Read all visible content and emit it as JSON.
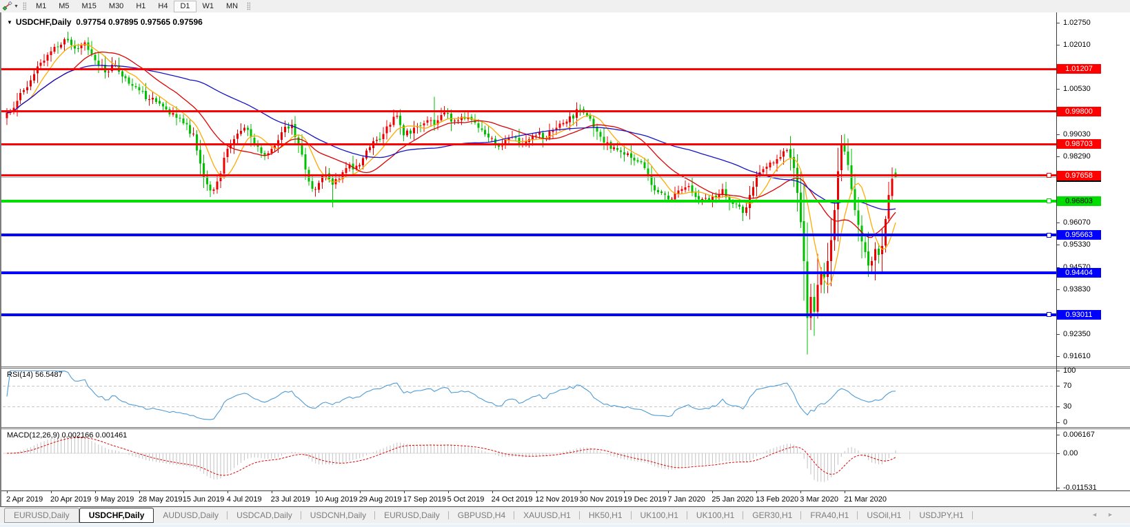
{
  "toolbar": {
    "indicator_icon": "trendline-indicator-icon",
    "timeframes": [
      "M1",
      "M5",
      "M15",
      "M30",
      "H1",
      "H4",
      "D1",
      "W1",
      "MN"
    ],
    "active_timeframe": "D1"
  },
  "chart": {
    "title": "USDCHF,Daily",
    "collapse_arrow": "▼",
    "ohlc": [
      "0.97754",
      "0.97895",
      "0.97565",
      "0.97596"
    ],
    "axis_range": {
      "price_top": 1.0301,
      "price_bottom": 0.91366
    },
    "axis_ticks": [
      {
        "label": "1.02750",
        "price": 1.0275
      },
      {
        "label": "1.02010",
        "price": 1.0201
      },
      {
        "label": "1.00530",
        "price": 1.0053
      },
      {
        "label": "0.99030",
        "price": 0.9903
      },
      {
        "label": "0.98290",
        "price": 0.9829
      },
      {
        "label": "0.96070",
        "price": 0.9607
      },
      {
        "label": "0.95330",
        "price": 0.9533
      },
      {
        "label": "0.94570",
        "price": 0.9457
      },
      {
        "label": "0.93830",
        "price": 0.9383
      },
      {
        "label": "0.92350",
        "price": 0.9235
      },
      {
        "label": "0.91610",
        "price": 0.9161
      }
    ],
    "levels": [
      {
        "label": "1.01207",
        "price": 1.01207,
        "color": "#ff0000",
        "text": "#ffffff",
        "marker": false
      },
      {
        "label": "0.99800",
        "price": 0.998,
        "color": "#ff0000",
        "text": "#ffffff",
        "marker": false
      },
      {
        "label": "0.98703",
        "price": 0.98703,
        "color": "#ff0000",
        "text": "#ffffff",
        "marker": false
      },
      {
        "label": "0.97658",
        "price": 0.97658,
        "color": "#ff0000",
        "text": "#ffffff",
        "marker": true
      },
      {
        "label": "0.96803",
        "price": 0.96803,
        "color": "#00dd00",
        "text": "#000000",
        "marker": true
      },
      {
        "label": "0.95663",
        "price": 0.95663,
        "color": "#0000ff",
        "text": "#ffffff",
        "marker": true
      },
      {
        "label": "0.94404",
        "price": 0.94404,
        "color": "#0000ff",
        "text": "#ffffff",
        "marker": false
      },
      {
        "label": "0.93011",
        "price": 0.93011,
        "color": "#0000ff",
        "text": "#ffffff",
        "marker": true
      }
    ],
    "current_price": {
      "label": "0.97596",
      "price": 0.97596
    },
    "date_labels": [
      {
        "label": "2 Apr 2019",
        "day": 0
      },
      {
        "label": "20 Apr 2019",
        "day": 13
      },
      {
        "label": "9 May 2019",
        "day": 26
      },
      {
        "label": "28 May 2019",
        "day": 39
      },
      {
        "label": "15 Jun 2019",
        "day": 52
      },
      {
        "label": "4 Jul 2019",
        "day": 65
      },
      {
        "label": "23 Jul 2019",
        "day": 78
      },
      {
        "label": "10 Aug 2019",
        "day": 91
      },
      {
        "label": "29 Aug 2019",
        "day": 104
      },
      {
        "label": "17 Sep 2019",
        "day": 117
      },
      {
        "label": "5 Oct 2019",
        "day": 130
      },
      {
        "label": "24 Oct 2019",
        "day": 143
      },
      {
        "label": "12 Nov 2019",
        "day": 156
      },
      {
        "label": "30 Nov 2019",
        "day": 169
      },
      {
        "label": "19 Dec 2019",
        "day": 182
      },
      {
        "label": "7 Jan 2020",
        "day": 195
      },
      {
        "label": "25 Jan 2020",
        "day": 208
      },
      {
        "label": "13 Feb 2020",
        "day": 221
      },
      {
        "label": "3 Mar 2020",
        "day": 234
      },
      {
        "label": "21 Mar 2020",
        "day": 247
      }
    ],
    "price_keypoints": [
      [
        0,
        0.9975
      ],
      [
        3,
        1.0015
      ],
      [
        6,
        1.006
      ],
      [
        9,
        1.013
      ],
      [
        13,
        1.018
      ],
      [
        17,
        1.022
      ],
      [
        20,
        1.019
      ],
      [
        23,
        1.021
      ],
      [
        26,
        1.015
      ],
      [
        29,
        1.011
      ],
      [
        32,
        1.0135
      ],
      [
        35,
        1.009
      ],
      [
        39,
        1.005
      ],
      [
        42,
        1.002
      ],
      [
        45,
        1.0005
      ],
      [
        48,
        0.997
      ],
      [
        52,
        0.994
      ],
      [
        55,
        0.9905
      ],
      [
        58,
        0.976
      ],
      [
        60,
        0.9715
      ],
      [
        62,
        0.9745
      ],
      [
        65,
        0.9855
      ],
      [
        68,
        0.9905
      ],
      [
        70,
        0.9925
      ],
      [
        73,
        0.987
      ],
      [
        76,
        0.983
      ],
      [
        78,
        0.9855
      ],
      [
        81,
        0.991
      ],
      [
        84,
        0.9935
      ],
      [
        87,
        0.9835
      ],
      [
        89,
        0.9745
      ],
      [
        91,
        0.972
      ],
      [
        94,
        0.977
      ],
      [
        96,
        0.9735
      ],
      [
        98,
        0.9755
      ],
      [
        100,
        0.979
      ],
      [
        104,
        0.98
      ],
      [
        107,
        0.986
      ],
      [
        110,
        0.9885
      ],
      [
        113,
        0.9935
      ],
      [
        115,
        0.9965
      ],
      [
        117,
        0.99
      ],
      [
        120,
        0.9925
      ],
      [
        123,
        0.994
      ],
      [
        125,
        0.995
      ],
      [
        126,
        0.9935
      ],
      [
        129,
        0.9975
      ],
      [
        131,
        0.9945
      ],
      [
        133,
        0.995
      ],
      [
        136,
        0.996
      ],
      [
        139,
        0.9925
      ],
      [
        143,
        0.989
      ],
      [
        146,
        0.9865
      ],
      [
        149,
        0.9895
      ],
      [
        152,
        0.987
      ],
      [
        156,
        0.99
      ],
      [
        159,
        0.989
      ],
      [
        162,
        0.9925
      ],
      [
        165,
        0.9945
      ],
      [
        169,
        0.9985
      ],
      [
        172,
        0.9955
      ],
      [
        175,
        0.9895
      ],
      [
        178,
        0.9855
      ],
      [
        182,
        0.9835
      ],
      [
        185,
        0.9815
      ],
      [
        188,
        0.979
      ],
      [
        191,
        0.9715
      ],
      [
        195,
        0.9685
      ],
      [
        198,
        0.9715
      ],
      [
        201,
        0.973
      ],
      [
        204,
        0.9685
      ],
      [
        208,
        0.9695
      ],
      [
        211,
        0.972
      ],
      [
        214,
        0.967
      ],
      [
        217,
        0.964
      ],
      [
        219,
        0.97
      ],
      [
        221,
        0.977
      ],
      [
        224,
        0.9795
      ],
      [
        227,
        0.982
      ],
      [
        230,
        0.985
      ],
      [
        232,
        0.979
      ],
      [
        234,
        0.961
      ],
      [
        235,
        0.948
      ],
      [
        236,
        0.929
      ],
      [
        237,
        0.936
      ],
      [
        238,
        0.931
      ],
      [
        239,
        0.94
      ],
      [
        240,
        0.9445
      ],
      [
        241,
        0.9425
      ],
      [
        242,
        0.948
      ],
      [
        243,
        0.955
      ],
      [
        244,
        0.965
      ],
      [
        245,
        0.978
      ],
      [
        246,
        0.987
      ],
      [
        247,
        0.9845
      ],
      [
        248,
        0.98
      ],
      [
        249,
        0.972
      ],
      [
        250,
        0.965
      ],
      [
        251,
        0.96
      ],
      [
        252,
        0.9545
      ],
      [
        253,
        0.951
      ],
      [
        254,
        0.9465
      ],
      [
        255,
        0.948
      ],
      [
        256,
        0.952
      ],
      [
        257,
        0.95
      ],
      [
        258,
        0.953
      ],
      [
        259,
        0.962
      ],
      [
        260,
        0.97
      ],
      [
        261,
        0.9755
      ],
      [
        262,
        0.97596
      ]
    ],
    "candle_overrides": {
      "17": {
        "h": 1.0226
      },
      "60": {
        "l": 0.9693
      },
      "91": {
        "l": 0.9695
      },
      "96": {
        "l": 0.9659
      },
      "126": {
        "h": 1.0028
      },
      "217": {
        "l": 0.9613
      },
      "236": {
        "l": 0.9168
      },
      "238": {
        "l": 0.923
      },
      "246": {
        "h": 0.9901
      },
      "262": {
        "o": 0.97754,
        "h": 0.97895,
        "l": 0.97565
      }
    },
    "moving_averages": [
      {
        "name": "ma-fast",
        "period": 8,
        "color": "#ffaa00"
      },
      {
        "name": "ma-mid",
        "period": 20,
        "color": "#dd0000"
      },
      {
        "name": "ma-slow",
        "period": 55,
        "color": "#1414c8"
      }
    ]
  },
  "rsi": {
    "label": "RSI(14)",
    "value": "56.5487",
    "period": 14,
    "scale_ticks": [
      {
        "label": "100",
        "value": 100
      },
      {
        "label": "70",
        "value": 70
      },
      {
        "label": "30",
        "value": 30
      },
      {
        "label": "0",
        "value": 0
      }
    ],
    "dashed_levels": [
      70,
      30
    ]
  },
  "macd": {
    "label": "MACD(12,26,9)",
    "values": [
      "0.002166",
      "0.001461"
    ],
    "params": [
      12,
      26,
      9
    ],
    "scale_ticks": [
      {
        "label": "0.006167",
        "value": 0.006167
      },
      {
        "label": "0.00",
        "value": 0
      },
      {
        "label": "-0.011531",
        "value": -0.011531
      }
    ]
  },
  "tabs": {
    "items": [
      "EURUSD,Daily",
      "USDCHF,Daily",
      "AUDUSD,Daily",
      "USDCAD,Daily",
      "USDCNH,Daily",
      "EURUSD,Daily",
      "GBPUSD,H4",
      "XAUUSD,H1",
      "HK50,H1",
      "UK100,H1",
      "UK100,H1",
      "GER30,H1",
      "FRA40,H1",
      "USOil,H1",
      "USDJPY,H1"
    ],
    "active_index": 1,
    "scroll_left_arrow": "◄",
    "scroll_right_arrow": "►"
  },
  "colors": {
    "bull_candle": "#ee0000",
    "bear_candle": "#00c000",
    "rsi_line": "#4f9bd5",
    "rsi_dash": "#c6c6c6",
    "macd_hist": "#c2c2c2",
    "macd_signal": "#e00000",
    "current_price_line": "#b4b4b4",
    "current_price_badge": "#000000"
  }
}
